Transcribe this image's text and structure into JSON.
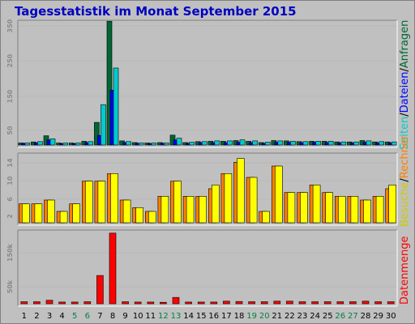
{
  "title": "Tagesstatistik im Monat September 2015",
  "colors": {
    "background": "#c0c0c0",
    "plot_bg": "#c0c0c0",
    "title": "#0000c0",
    "anfragen": "#006633",
    "dateien": "#0000ff",
    "seiten": "#00cccc",
    "rechner": "#ff8000",
    "besuche": "#ffff00",
    "datenmenge": "#ff0000",
    "weekday_label": "#000000",
    "weekend_label": "#008040"
  },
  "labels": {
    "anfragen": "Anfragen",
    "dateien": "Dateien",
    "seiten": "Seiten",
    "rechner": "Rechner",
    "besuche": "Besuche",
    "datenmenge": "Datenmenge"
  },
  "chart_data": [
    {
      "type": "bar",
      "panel": "top",
      "series": [
        {
          "name": "Anfragen",
          "values": [
            6,
            9,
            27,
            6,
            6,
            11,
            66,
            362,
            12,
            7,
            6,
            7,
            29,
            7,
            10,
            11,
            11,
            13,
            11,
            7,
            13,
            12,
            10,
            11,
            11,
            9,
            9,
            13,
            9,
            9
          ]
        },
        {
          "name": "Dateien",
          "values": [
            5,
            6,
            15,
            4,
            4,
            7,
            28,
            160,
            7,
            5,
            4,
            5,
            15,
            5,
            7,
            7,
            7,
            8,
            7,
            5,
            8,
            8,
            7,
            8,
            7,
            6,
            6,
            8,
            6,
            6
          ]
        },
        {
          "name": "Seiten",
          "values": [
            6,
            10,
            18,
            6,
            6,
            10,
            118,
            225,
            10,
            6,
            6,
            6,
            20,
            8,
            10,
            12,
            12,
            15,
            12,
            8,
            12,
            11,
            10,
            11,
            11,
            9,
            9,
            12,
            10,
            9
          ]
        }
      ],
      "ytick_labels": [
        "50",
        "150",
        "250",
        "350"
      ],
      "ylim": [
        0,
        360
      ]
    },
    {
      "type": "bar",
      "panel": "middle",
      "series": [
        {
          "name": "Rechner",
          "values": [
            5,
            5,
            6,
            3,
            5,
            11,
            11,
            13,
            6,
            4,
            3,
            7,
            11,
            7,
            7,
            9,
            13,
            16,
            12,
            3,
            15,
            8,
            8,
            10,
            8,
            7,
            7,
            6,
            7,
            9
          ]
        },
        {
          "name": "Besuche",
          "values": [
            5,
            5,
            6,
            3,
            5,
            11,
            11,
            13,
            6,
            4,
            3,
            7,
            11,
            7,
            7,
            10,
            13,
            17,
            12,
            3,
            15,
            8,
            8,
            10,
            8,
            7,
            7,
            6,
            7,
            10
          ]
        }
      ],
      "ytick_labels": [
        "2",
        "6",
        "10",
        "14"
      ],
      "ylim": [
        0,
        18
      ]
    },
    {
      "type": "bar",
      "panel": "bottom",
      "series": [
        {
          "name": "Datenmenge",
          "values": [
            7000,
            7000,
            12000,
            6000,
            6000,
            7000,
            98000,
            245000,
            7000,
            6000,
            6000,
            5000,
            22000,
            6000,
            6000,
            6000,
            9000,
            8000,
            7000,
            7000,
            9000,
            9000,
            7000,
            7000,
            7000,
            7000,
            7000,
            9000,
            7000,
            7000
          ]
        }
      ],
      "ytick_labels": [
        "50k",
        "150k"
      ],
      "ylim": [
        0,
        250000
      ]
    }
  ],
  "days": [
    "1",
    "2",
    "3",
    "4",
    "5",
    "6",
    "7",
    "8",
    "9",
    "10",
    "11",
    "12",
    "13",
    "14",
    "15",
    "16",
    "17",
    "18",
    "19",
    "20",
    "21",
    "22",
    "23",
    "24",
    "25",
    "26",
    "27",
    "28",
    "29",
    "30"
  ],
  "weekend_days": [
    "5",
    "6",
    "12",
    "13",
    "19",
    "20",
    "26",
    "27"
  ]
}
